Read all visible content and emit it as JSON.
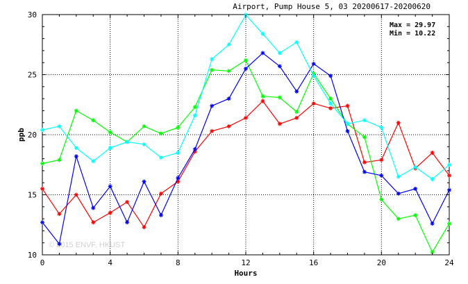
{
  "chart_data": {
    "type": "line",
    "title": "Airport, Pump House 5, 03 20200617-20200620",
    "xlabel": "Hours",
    "ylabel": "ppb",
    "xlim": [
      0,
      24
    ],
    "ylim": [
      10,
      30
    ],
    "x_ticks": [
      0,
      4,
      8,
      12,
      16,
      20,
      24
    ],
    "y_ticks": [
      10,
      15,
      20,
      25,
      30
    ],
    "grid": true,
    "annotations": {
      "max": "Max = 29.97",
      "min": "Min = 10.22"
    },
    "watermark": "© 2015 ENVF, HKUST",
    "x": [
      0,
      1,
      2,
      3,
      4,
      5,
      6,
      7,
      8,
      9,
      10,
      11,
      12,
      13,
      14,
      15,
      16,
      17,
      18,
      19,
      20,
      21,
      22,
      23,
      24
    ],
    "series": [
      {
        "color": "#ff0000",
        "values": [
          15.5,
          13.4,
          15.0,
          12.7,
          13.5,
          14.4,
          12.3,
          15.1,
          16.1,
          18.6,
          20.3,
          20.7,
          21.4,
          22.8,
          20.9,
          21.4,
          22.6,
          22.2,
          22.4,
          17.7,
          17.9,
          21.0,
          17.2,
          18.5,
          16.6
        ]
      },
      {
        "color": "#00ff00",
        "values": [
          17.6,
          17.9,
          22.0,
          21.2,
          20.2,
          19.4,
          20.7,
          20.1,
          20.6,
          22.3,
          25.4,
          25.3,
          26.2,
          23.2,
          23.1,
          21.9,
          25.1,
          23.0,
          20.9,
          19.8,
          14.6,
          13.0,
          13.3,
          10.22,
          12.6
        ]
      },
      {
        "color": "#0000ff",
        "values": [
          12.7,
          10.9,
          18.2,
          13.9,
          15.7,
          12.7,
          16.1,
          13.3,
          16.4,
          18.8,
          22.4,
          23.0,
          25.5,
          26.8,
          25.7,
          23.6,
          25.9,
          24.9,
          20.3,
          16.9,
          16.6,
          15.1,
          15.5,
          12.6,
          15.4
        ]
      },
      {
        "color": "#00ffff",
        "values": [
          20.4,
          20.7,
          18.9,
          17.8,
          18.9,
          19.4,
          19.2,
          18.1,
          18.5,
          21.6,
          26.3,
          27.5,
          29.97,
          28.4,
          26.8,
          27.7,
          24.9,
          22.6,
          20.9,
          21.2,
          20.6,
          16.5,
          17.3,
          16.3,
          17.5
        ]
      }
    ]
  }
}
